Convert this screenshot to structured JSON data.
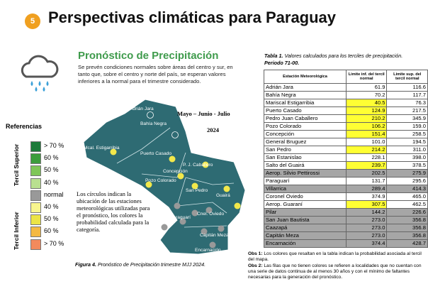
{
  "header": {
    "badge": "5",
    "title": "Perspectivas climáticas para Paraguay"
  },
  "section": {
    "title": "Pronóstico de Precipitación",
    "text": "Se prevén condiciones normales sobre áreas del centro y sur, en tanto que, sobre el centro y norte del país, se esperan valores inferiores a la normal para el trimestre considerado.",
    "period": "Mayo – Junio - Julio",
    "year": "2024"
  },
  "legend": {
    "title": "Referencias",
    "upper": "Tercil Superior",
    "lower": "Tercil Inferior",
    "items": [
      {
        "label": "> 70 %",
        "color": "#1d7a3a"
      },
      {
        "label": "60 %",
        "color": "#3c9d3c"
      },
      {
        "label": "50 %",
        "color": "#7fc657"
      },
      {
        "label": "40 %",
        "color": "#b9e090"
      },
      {
        "label": "normal",
        "color": "#999999"
      },
      {
        "label": "40 %",
        "color": "#f7f58e"
      },
      {
        "label": "50 %",
        "color": "#ece445"
      },
      {
        "label": "60 %",
        "color": "#f4b942"
      },
      {
        "label": "> 70 %",
        "color": "#f28a5c"
      }
    ]
  },
  "map": {
    "labels": [
      "Adrián Jara",
      "Bahía Negra",
      "Mcal. Estigarribia",
      "Puerto Casado",
      "P. J. Caballero",
      "Concepción",
      "Pozo Colorado",
      "San Pedro",
      "Guairá",
      "Cnel. Oviedo",
      "Paraguarí",
      "Capitán Meza",
      "Encarnación"
    ],
    "note": "Los círculos indican la ubicación de las estaciones meteorológicas utilizadas para el pronóstico, los colores la probabilidad calculada para la categoría.",
    "caption_label": "Figura 4.",
    "caption": "Pronóstico de Precipitación trimestre MJJ 2024."
  },
  "table": {
    "caption_label": "Tabla 1.",
    "caption": "Valores calculados para los terciles de precipitación.",
    "period": "Periodo 71-00.",
    "headers": [
      "Estación Meteorológica",
      "Limite inf. del tercil normal",
      "Limite sup. del tercil normal"
    ],
    "rows": [
      {
        "cells": [
          "Adrián Jara",
          "61.9",
          "116.6"
        ],
        "colors": [
          "#ffffff",
          "#ffffff",
          "#ffffff"
        ]
      },
      {
        "cells": [
          "Bahía Negra",
          "70.2",
          "117.7"
        ],
        "colors": [
          "#ffffff",
          "#ffffff",
          "#ffffff"
        ]
      },
      {
        "cells": [
          "Mariscal Estigarribia",
          "40.5",
          "76.3"
        ],
        "colors": [
          "#ffffff",
          "#ffff33",
          "#ffffff"
        ]
      },
      {
        "cells": [
          "Puerto Casado",
          "124.9",
          "217.5"
        ],
        "colors": [
          "#ffffff",
          "#ffff33",
          "#ffffff"
        ]
      },
      {
        "cells": [
          "Pedro Juan Caballero",
          "210.2",
          "345.9"
        ],
        "colors": [
          "#ffffff",
          "#ffff33",
          "#ffffff"
        ]
      },
      {
        "cells": [
          "Pozo Colorado",
          "106.2",
          "159.0"
        ],
        "colors": [
          "#ffffff",
          "#ffff33",
          "#ffffff"
        ]
      },
      {
        "cells": [
          "Concepción",
          "151.4",
          "258.5"
        ],
        "colors": [
          "#ffffff",
          "#ffff33",
          "#ffffff"
        ]
      },
      {
        "cells": [
          "General Bruguez",
          "101.0",
          "194.5"
        ],
        "colors": [
          "#ffffff",
          "#ffffff",
          "#ffffff"
        ]
      },
      {
        "cells": [
          "San Pedro",
          "214.2",
          "311.0"
        ],
        "colors": [
          "#ffffff",
          "#ffff33",
          "#ffffff"
        ]
      },
      {
        "cells": [
          "San Estanislao",
          "228.1",
          "398.0"
        ],
        "colors": [
          "#ffffff",
          "#ffffff",
          "#ffffff"
        ]
      },
      {
        "cells": [
          "Salto del Guairá",
          "239.7",
          "378.5"
        ],
        "colors": [
          "#ffffff",
          "#ffff33",
          "#ffffff"
        ]
      },
      {
        "cells": [
          "Aerop. Silvio Pettirossi",
          "202.5",
          "275.9"
        ],
        "colors": [
          "#a6a6a6",
          "#a6a6a6",
          "#a6a6a6"
        ]
      },
      {
        "cells": [
          "Paraguarí",
          "131.7",
          "295.6"
        ],
        "colors": [
          "#ffffff",
          "#ffffff",
          "#ffffff"
        ]
      },
      {
        "cells": [
          "Villarrica",
          "289.4",
          "414.3"
        ],
        "colors": [
          "#a6a6a6",
          "#a6a6a6",
          "#a6a6a6"
        ]
      },
      {
        "cells": [
          "Coronel Oviedo",
          "374.9",
          "465.0"
        ],
        "colors": [
          "#ffffff",
          "#ffffff",
          "#ffffff"
        ]
      },
      {
        "cells": [
          "Aerop. Guaraní",
          "307.5",
          "462.5"
        ],
        "colors": [
          "#ffffff",
          "#ffff33",
          "#ffffff"
        ]
      },
      {
        "cells": [
          "Pilar",
          "144.2",
          "226.6"
        ],
        "colors": [
          "#a6a6a6",
          "#a6a6a6",
          "#a6a6a6"
        ]
      },
      {
        "cells": [
          "San Juan Bautista",
          "273.0",
          "356.8"
        ],
        "colors": [
          "#a6a6a6",
          "#a6a6a6",
          "#a6a6a6"
        ]
      },
      {
        "cells": [
          "Caazapá",
          "273.0",
          "356.8"
        ],
        "colors": [
          "#a6a6a6",
          "#a6a6a6",
          "#a6a6a6"
        ]
      },
      {
        "cells": [
          "Capitán Meza",
          "273.0",
          "356.8"
        ],
        "colors": [
          "#a6a6a6",
          "#a6a6a6",
          "#a6a6a6"
        ]
      },
      {
        "cells": [
          "Encarnación",
          "374.4",
          "428.7"
        ],
        "colors": [
          "#a6a6a6",
          "#a6a6a6",
          "#a6a6a6"
        ]
      }
    ],
    "obs": [
      {
        "label": "Obs 1:",
        "text": "Los colores que resaltan en la tabla indican la probabilidad asociada al tercil del mapa."
      },
      {
        "label": "Obs 2:",
        "text": "Las filas que no tienen colores se refieren a localidades que no cuentan con una serie de datos continua de al menos 30 años y con el mínimo de faltantes necesarias para la generación del pronóstico."
      }
    ]
  }
}
